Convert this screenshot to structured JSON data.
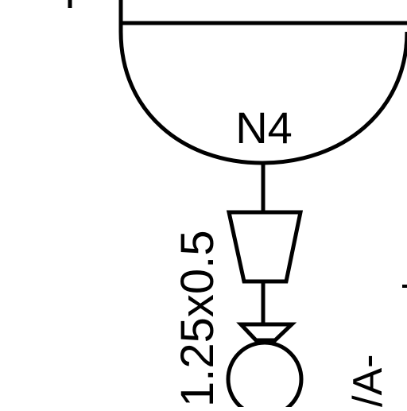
{
  "diagram": {
    "node_label": "N4",
    "pipe_size_label": "1.25x0.5",
    "partial_label": "/A-",
    "colors": {
      "line": "#000000",
      "background": "#ffffff"
    }
  }
}
